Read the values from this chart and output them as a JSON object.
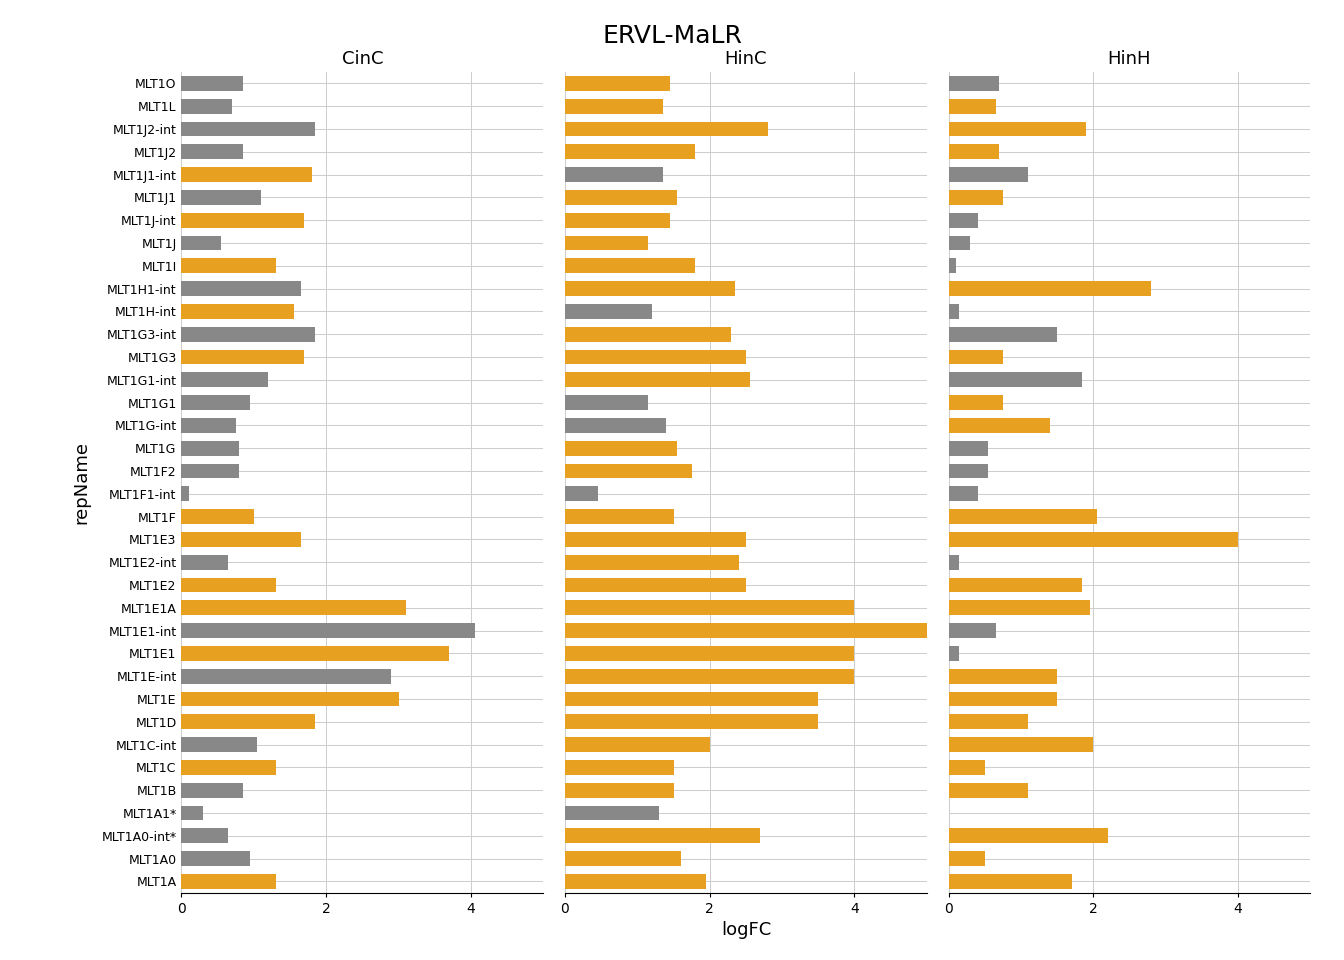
{
  "title": "ERVL-MaLR",
  "xlabel": "logFC",
  "ylabel": "repName",
  "panel_titles": [
    "CinC",
    "HinC",
    "HinH"
  ],
  "categories": [
    "MLT1O",
    "MLT1L",
    "MLT1J2-int",
    "MLT1J2",
    "MLT1J1-int",
    "MLT1J1",
    "MLT1J-int",
    "MLT1J",
    "MLT1I",
    "MLT1H1-int",
    "MLT1H-int",
    "MLT1G3-int",
    "MLT1G3",
    "MLT1G1-int",
    "MLT1G1",
    "MLT1G-int",
    "MLT1G",
    "MLT1F2",
    "MLT1F1-int",
    "MLT1F",
    "MLT1E3",
    "MLT1E2-int",
    "MLT1E2",
    "MLT1E1A",
    "MLT1E1-int",
    "MLT1E1",
    "MLT1E-int",
    "MLT1E",
    "MLT1D",
    "MLT1C-int",
    "MLT1C",
    "MLT1B",
    "MLT1A1*",
    "MLT1A0-int*",
    "MLT1A0",
    "MLT1A"
  ],
  "colors": {
    "orange": "#E8A020",
    "gray": "#888888"
  },
  "data": {
    "CinC": [
      [
        0.85,
        "gray"
      ],
      [
        0.7,
        "gray"
      ],
      [
        1.85,
        "gray"
      ],
      [
        0.85,
        "gray"
      ],
      [
        1.8,
        "orange"
      ],
      [
        1.1,
        "gray"
      ],
      [
        1.7,
        "orange"
      ],
      [
        0.55,
        "gray"
      ],
      [
        1.3,
        "orange"
      ],
      [
        1.65,
        "gray"
      ],
      [
        1.55,
        "orange"
      ],
      [
        1.85,
        "gray"
      ],
      [
        1.7,
        "orange"
      ],
      [
        1.2,
        "gray"
      ],
      [
        0.95,
        "gray"
      ],
      [
        0.75,
        "gray"
      ],
      [
        0.8,
        "gray"
      ],
      [
        0.8,
        "gray"
      ],
      [
        0.1,
        "gray"
      ],
      [
        1.0,
        "orange"
      ],
      [
        1.65,
        "orange"
      ],
      [
        0.65,
        "gray"
      ],
      [
        1.3,
        "orange"
      ],
      [
        3.1,
        "orange"
      ],
      [
        4.05,
        "gray"
      ],
      [
        3.7,
        "orange"
      ],
      [
        2.9,
        "gray"
      ],
      [
        3.0,
        "orange"
      ],
      [
        1.85,
        "orange"
      ],
      [
        1.05,
        "gray"
      ],
      [
        1.3,
        "orange"
      ],
      [
        0.85,
        "gray"
      ],
      [
        0.3,
        "gray"
      ],
      [
        0.65,
        "gray"
      ],
      [
        0.95,
        "gray"
      ],
      [
        1.3,
        "orange"
      ]
    ],
    "HinC": [
      [
        1.45,
        "orange"
      ],
      [
        1.35,
        "orange"
      ],
      [
        2.8,
        "orange"
      ],
      [
        1.8,
        "orange"
      ],
      [
        1.35,
        "gray"
      ],
      [
        1.55,
        "orange"
      ],
      [
        1.45,
        "orange"
      ],
      [
        1.15,
        "orange"
      ],
      [
        1.8,
        "orange"
      ],
      [
        2.35,
        "orange"
      ],
      [
        1.2,
        "gray"
      ],
      [
        2.3,
        "orange"
      ],
      [
        2.5,
        "orange"
      ],
      [
        2.55,
        "orange"
      ],
      [
        1.15,
        "gray"
      ],
      [
        1.4,
        "gray"
      ],
      [
        1.55,
        "orange"
      ],
      [
        1.75,
        "orange"
      ],
      [
        0.45,
        "gray"
      ],
      [
        1.5,
        "orange"
      ],
      [
        2.5,
        "orange"
      ],
      [
        2.4,
        "orange"
      ],
      [
        2.5,
        "orange"
      ],
      [
        4.0,
        "orange"
      ],
      [
        5.0,
        "orange"
      ],
      [
        4.0,
        "orange"
      ],
      [
        4.0,
        "orange"
      ],
      [
        3.5,
        "orange"
      ],
      [
        3.5,
        "orange"
      ],
      [
        2.0,
        "orange"
      ],
      [
        1.5,
        "orange"
      ],
      [
        1.5,
        "orange"
      ],
      [
        1.3,
        "gray"
      ],
      [
        2.7,
        "orange"
      ],
      [
        1.6,
        "orange"
      ],
      [
        1.95,
        "orange"
      ]
    ],
    "HinH": [
      [
        0.7,
        "gray"
      ],
      [
        0.65,
        "orange"
      ],
      [
        1.9,
        "orange"
      ],
      [
        0.7,
        "orange"
      ],
      [
        1.1,
        "gray"
      ],
      [
        0.75,
        "orange"
      ],
      [
        0.4,
        "gray"
      ],
      [
        0.3,
        "gray"
      ],
      [
        0.1,
        "gray"
      ],
      [
        2.8,
        "orange"
      ],
      [
        0.15,
        "gray"
      ],
      [
        1.5,
        "gray"
      ],
      [
        0.75,
        "orange"
      ],
      [
        1.85,
        "gray"
      ],
      [
        0.75,
        "orange"
      ],
      [
        1.4,
        "orange"
      ],
      [
        0.55,
        "gray"
      ],
      [
        0.55,
        "gray"
      ],
      [
        0.4,
        "gray"
      ],
      [
        2.05,
        "orange"
      ],
      [
        4.0,
        "orange"
      ],
      [
        0.15,
        "gray"
      ],
      [
        1.85,
        "orange"
      ],
      [
        1.95,
        "orange"
      ],
      [
        0.65,
        "gray"
      ],
      [
        0.15,
        "gray"
      ],
      [
        1.5,
        "orange"
      ],
      [
        1.5,
        "orange"
      ],
      [
        1.1,
        "orange"
      ],
      [
        2.0,
        "orange"
      ],
      [
        0.5,
        "orange"
      ],
      [
        1.1,
        "orange"
      ],
      [
        0.0,
        "gray"
      ],
      [
        2.2,
        "orange"
      ],
      [
        0.5,
        "orange"
      ],
      [
        1.7,
        "orange"
      ]
    ]
  }
}
